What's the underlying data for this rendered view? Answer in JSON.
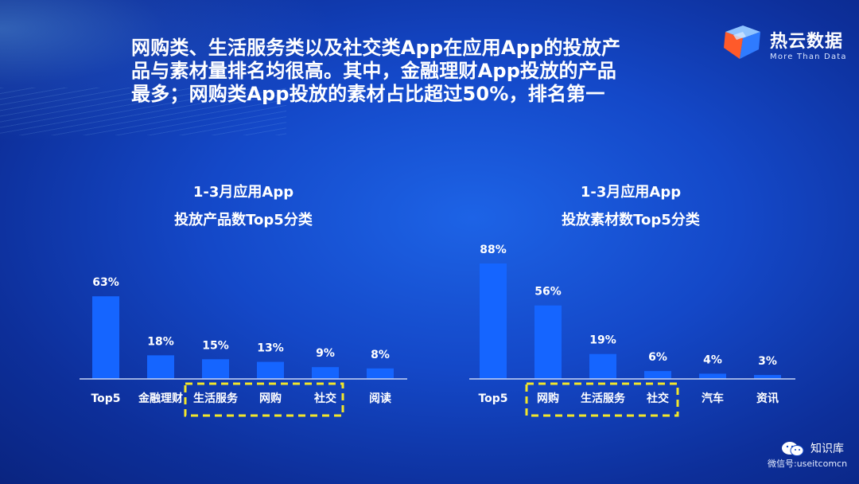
{
  "headline": {
    "line1": "网购类、生活服务类以及社交类App在应用App的投放产",
    "line2": "品与素材量排名均很高。其中，金融理财App投放的产品",
    "line3": "最多；网购类App投放的素材占比超过50%，排名第一"
  },
  "logo": {
    "name": "热云数据",
    "tagline": "More Than Data"
  },
  "watermark": {
    "title": "知识库",
    "subtitle": "微信号:useitcomcn"
  },
  "colors": {
    "bar": "#1565ff",
    "highlight_box": "#f2e62b",
    "axis": "#c9d6f5"
  },
  "chart_data": [
    {
      "type": "bar",
      "title": [
        "1-3月应用App",
        "投放产品数Top5分类"
      ],
      "categories": [
        "Top5",
        "金融理财",
        "生活服务",
        "网购",
        "社交",
        "阅读"
      ],
      "values": [
        63,
        18,
        15,
        13,
        9,
        8
      ],
      "value_labels": [
        "63%",
        "18%",
        "15%",
        "13%",
        "9%",
        "8%"
      ],
      "unit": "%",
      "ylim": [
        0,
        100
      ],
      "grid": false,
      "highlighted": [
        "生活服务",
        "网购",
        "社交"
      ]
    },
    {
      "type": "bar",
      "title": [
        "1-3月应用App",
        "投放素材数Top5分类"
      ],
      "categories": [
        "Top5",
        "网购",
        "生活服务",
        "社交",
        "汽车",
        "资讯"
      ],
      "values": [
        88,
        56,
        19,
        6,
        4,
        3
      ],
      "value_labels": [
        "88%",
        "56%",
        "19%",
        "6%",
        "4%",
        "3%"
      ],
      "unit": "%",
      "ylim": [
        0,
        100
      ],
      "grid": false,
      "highlighted": [
        "网购",
        "生活服务",
        "社交"
      ]
    }
  ]
}
